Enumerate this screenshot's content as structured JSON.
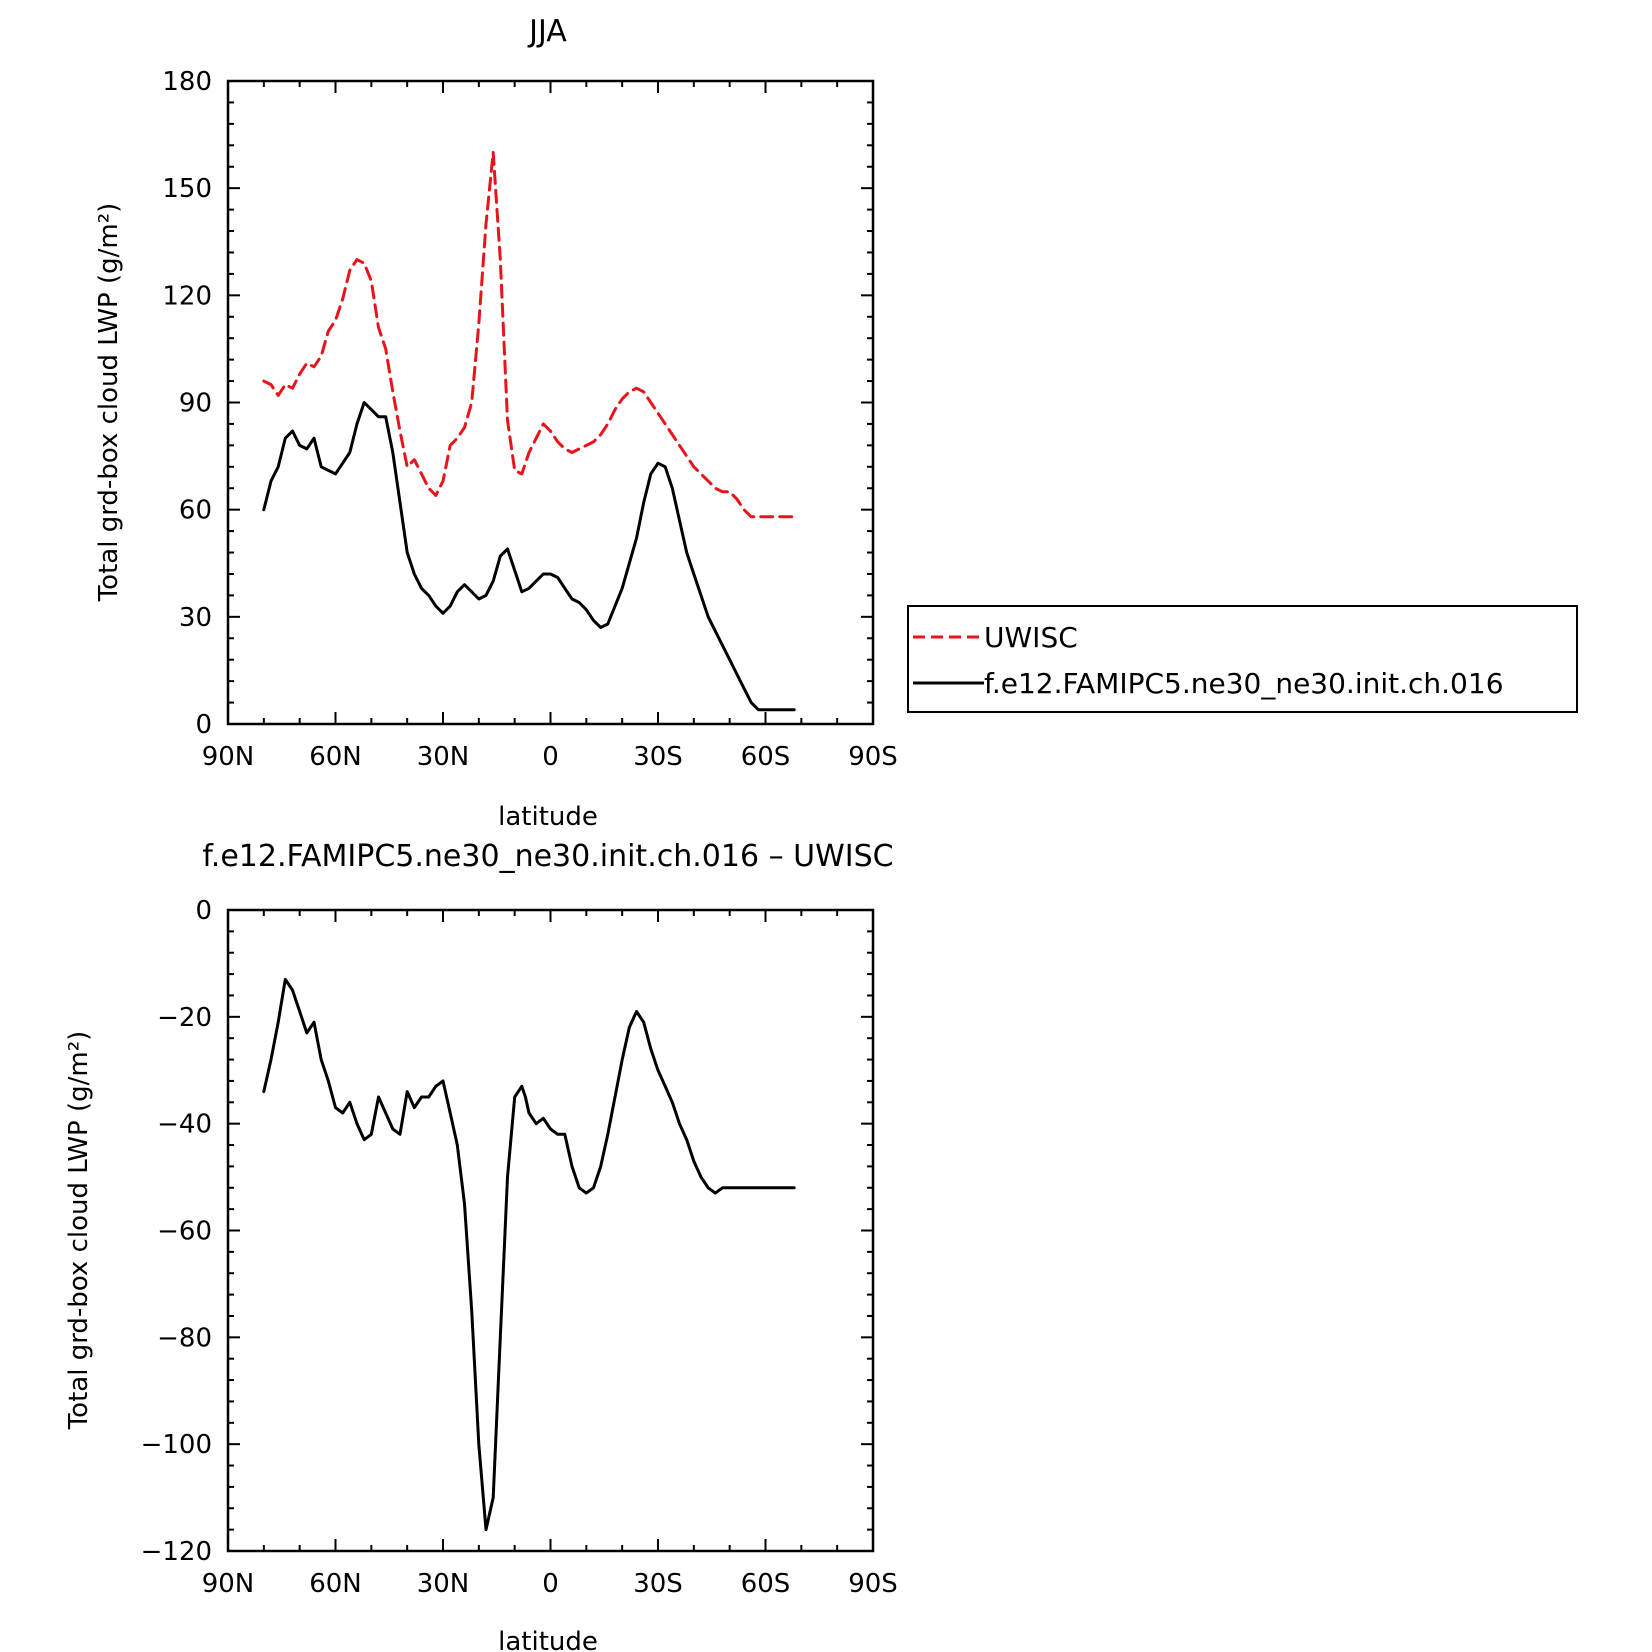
{
  "chart_data": [
    {
      "type": "line",
      "title": "JJA",
      "xlabel": "latitude",
      "ylabel": "Total grd-box cloud LWP (g/m²)",
      "xlim": [
        90,
        -90
      ],
      "ylim": [
        0,
        180
      ],
      "x_tick_values": [
        90,
        60,
        30,
        0,
        -30,
        -60,
        -90
      ],
      "x_tick_labels": [
        "90N",
        "60N",
        "30N",
        "0",
        "30S",
        "60S",
        "90S"
      ],
      "y_tick_values": [
        0,
        30,
        60,
        90,
        120,
        150,
        180
      ],
      "y_tick_labels": [
        "0",
        "30",
        "60",
        "90",
        "120",
        "150",
        "180"
      ],
      "legend_position": "right",
      "x": [
        80,
        78,
        76,
        74,
        72,
        70,
        68,
        66,
        64,
        62,
        60,
        58,
        56,
        54,
        52,
        50,
        48,
        46,
        44,
        42,
        40,
        38,
        36,
        34,
        32,
        30,
        28,
        26,
        24,
        22,
        20,
        18,
        16,
        14,
        12,
        10,
        8,
        6,
        4,
        2,
        0,
        -2,
        -4,
        -6,
        -8,
        -10,
        -12,
        -14,
        -16,
        -18,
        -20,
        -22,
        -24,
        -26,
        -28,
        -30,
        -32,
        -34,
        -36,
        -38,
        -40,
        -42,
        -44,
        -46,
        -48,
        -50,
        -52,
        -54,
        -56,
        -58,
        -60,
        -62,
        -64,
        -66,
        -68
      ],
      "series": [
        {
          "name": "UWISC",
          "color": "#e8141c",
          "dash": "dashed",
          "values": [
            96,
            95,
            92,
            95,
            94,
            98,
            101,
            100,
            103,
            110,
            113,
            119,
            127,
            130,
            129,
            124,
            111,
            105,
            93,
            82,
            72,
            74,
            70,
            66,
            64,
            68,
            78,
            80,
            83,
            90,
            112,
            140,
            160,
            130,
            85,
            71,
            70,
            76,
            80,
            84,
            82,
            79,
            77,
            76,
            77,
            78,
            79,
            81,
            84,
            88,
            91,
            93,
            94,
            93,
            90,
            87,
            84,
            81,
            78,
            75,
            72,
            70,
            68,
            66,
            65,
            65,
            63,
            60,
            58,
            58,
            58,
            58,
            58,
            58,
            58
          ]
        },
        {
          "name": "f.e12.FAMIPC5.ne30_ne30.init.ch.016",
          "color": "#000000",
          "dash": "solid",
          "values": [
            60,
            68,
            72,
            80,
            82,
            78,
            77,
            80,
            72,
            71,
            70,
            73,
            76,
            84,
            90,
            88,
            86,
            86,
            76,
            62,
            48,
            42,
            38,
            36,
            33,
            31,
            33,
            37,
            39,
            37,
            35,
            36,
            40,
            47,
            49,
            43,
            37,
            38,
            40,
            42,
            42,
            41,
            38,
            35,
            34,
            32,
            29,
            27,
            28,
            33,
            38,
            45,
            52,
            62,
            70,
            73,
            72,
            66,
            57,
            48,
            42,
            36,
            30,
            26,
            22,
            18,
            14,
            10,
            6,
            4,
            4,
            4,
            4,
            4,
            4
          ]
        }
      ]
    },
    {
      "type": "line",
      "title": "f.e12.FAMIPC5.ne30_ne30.init.ch.016 – UWISC",
      "xlabel": "latitude",
      "ylabel": "Total grd-box cloud LWP (g/m²)",
      "xlim": [
        90,
        -90
      ],
      "ylim": [
        -120,
        0
      ],
      "x_tick_values": [
        90,
        60,
        30,
        0,
        -30,
        -60,
        -90
      ],
      "x_tick_labels": [
        "90N",
        "60N",
        "30N",
        "0",
        "30S",
        "60S",
        "90S"
      ],
      "y_tick_values": [
        0,
        -20,
        -40,
        -60,
        -80,
        -100,
        -120
      ],
      "y_tick_labels": [
        "0",
        "−20",
        "−40",
        "−60",
        "−80",
        "−100",
        "−120"
      ],
      "x": [
        80,
        78,
        76,
        74,
        72,
        70,
        68,
        66,
        64,
        62,
        60,
        58,
        56,
        54,
        52,
        50,
        48,
        46,
        44,
        42,
        40,
        38,
        36,
        34,
        32,
        30,
        28,
        26,
        24,
        22,
        20,
        18,
        16,
        14,
        12,
        10,
        8,
        7,
        6,
        4,
        2,
        0,
        -2,
        -4,
        -6,
        -8,
        -10,
        -12,
        -14,
        -16,
        -18,
        -20,
        -22,
        -24,
        -26,
        -28,
        -30,
        -32,
        -34,
        -36,
        -38,
        -40,
        -42,
        -44,
        -46,
        -48,
        -50,
        -52,
        -54,
        -56,
        -58,
        -60,
        -62,
        -64,
        -66,
        -68
      ],
      "series": [
        {
          "name": "",
          "color": "#000000",
          "dash": "solid",
          "values": [
            -34,
            -28,
            -21,
            -13,
            -15,
            -19,
            -23,
            -21,
            -28,
            -32,
            -37,
            -38,
            -36,
            -40,
            -43,
            -42,
            -35,
            -38,
            -41,
            -42,
            -34,
            -37,
            -35,
            -35,
            -33,
            -32,
            -38,
            -44,
            -55,
            -75,
            -100,
            -116,
            -110,
            -80,
            -50,
            -35,
            -33,
            -35,
            -38,
            -40,
            -39,
            -41,
            -42,
            -42,
            -48,
            -52,
            -53,
            -52,
            -48,
            -42,
            -35,
            -28,
            -22,
            -19,
            -21,
            -26,
            -30,
            -33,
            -36,
            -40,
            -43,
            -47,
            -50,
            -52,
            -53,
            -52,
            -52,
            -52,
            -52,
            -52,
            -52,
            -52,
            -52,
            -52,
            -52,
            -52
          ]
        }
      ]
    }
  ]
}
